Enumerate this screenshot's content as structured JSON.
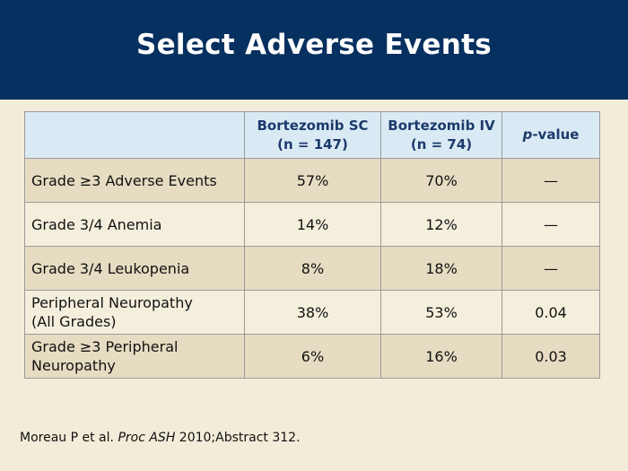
{
  "slide": {
    "title": "Select Adverse Events"
  },
  "table": {
    "headers": [
      {
        "line1": "",
        "line2": ""
      },
      {
        "line1": "Bortezomib SC",
        "line2": "(n = 147)"
      },
      {
        "line1": "Bortezomib IV",
        "line2": "(n = 74)"
      },
      {
        "italic": "p",
        "rest": "-value"
      }
    ],
    "rows": [
      {
        "label_line1": "Grade ≥3 Adverse Events",
        "label_line2": "",
        "sc": "57%",
        "iv": "70%",
        "p": "—"
      },
      {
        "label_line1": "Grade 3/4 Anemia",
        "label_line2": "",
        "sc": "14%",
        "iv": "12%",
        "p": "—"
      },
      {
        "label_line1": "Grade 3/4 Leukopenia",
        "label_line2": "",
        "sc": "8%",
        "iv": "18%",
        "p": "—"
      },
      {
        "label_line1": "Peripheral Neuropathy",
        "label_line2": "(All Grades)",
        "sc": "38%",
        "iv": "53%",
        "p": "0.04"
      },
      {
        "label_line1": "Grade ≥3 Peripheral",
        "label_line2": "Neuropathy",
        "sc": "6%",
        "iv": "16%",
        "p": "0.03"
      }
    ]
  },
  "footnote": {
    "author": "Moreau P et al. ",
    "journal": "Proc ASH",
    "rest": " 2010;Abstract 312."
  },
  "colors": {
    "header_band": "#06305f",
    "background": "#f3ecd9",
    "table_header": "#daeaf4",
    "row_shade": "#e6dcc2"
  }
}
